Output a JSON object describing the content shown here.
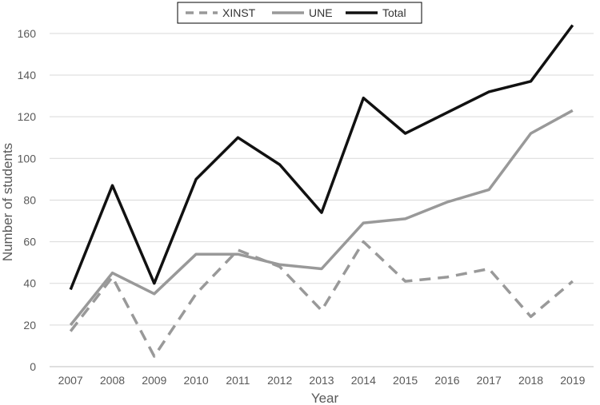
{
  "chart_data": {
    "type": "line",
    "title": "",
    "xlabel": "Year",
    "ylabel": "Number of students",
    "categories": [
      "2007",
      "2008",
      "2009",
      "2010",
      "2011",
      "2012",
      "2013",
      "2014",
      "2015",
      "2016",
      "2017",
      "2018",
      "2019"
    ],
    "ylim": [
      0,
      170
    ],
    "yticks": [
      0,
      20,
      40,
      60,
      80,
      100,
      120,
      140,
      160
    ],
    "grid": true,
    "legend_position": "top-center",
    "series": [
      {
        "name": "XINST",
        "style": "dashed",
        "color": "#999999",
        "values": [
          17,
          43,
          5,
          35,
          56,
          48,
          27,
          60,
          41,
          43,
          47,
          24,
          41
        ]
      },
      {
        "name": "UNE",
        "style": "solid",
        "color": "#999999",
        "values": [
          20,
          45,
          35,
          54,
          54,
          49,
          47,
          69,
          71,
          79,
          85,
          112,
          123
        ]
      },
      {
        "name": "Total",
        "style": "solid",
        "color": "#111111",
        "values": [
          37,
          87,
          40,
          90,
          110,
          97,
          74,
          129,
          112,
          122,
          132,
          137,
          164
        ]
      }
    ]
  }
}
